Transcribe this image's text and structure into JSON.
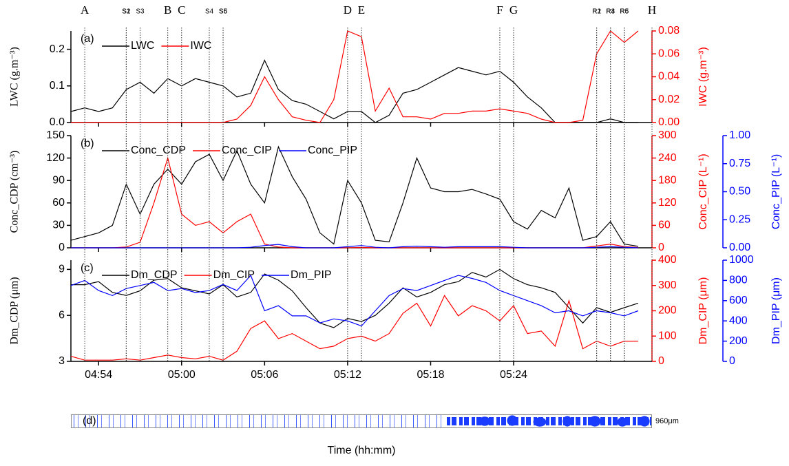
{
  "chart_data": {
    "type": "line",
    "xlabel": "Time (hh:mm)",
    "x": [
      "04:52",
      "04:53",
      "04:54",
      "04:55",
      "04:56",
      "04:57",
      "04:58",
      "04:59",
      "05:00",
      "05:01",
      "05:02",
      "05:03",
      "05:04",
      "05:05",
      "05:06",
      "05:07",
      "05:08",
      "05:09",
      "05:10",
      "05:11",
      "05:12",
      "05:13",
      "05:14",
      "05:15",
      "05:16",
      "05:17",
      "05:18",
      "05:19",
      "05:20",
      "05:21",
      "05:22",
      "05:23",
      "05:24",
      "05:25",
      "05:26",
      "05:27",
      "05:28",
      "05:29",
      "05:30",
      "05:31",
      "05:32",
      "05:33"
    ],
    "xlim": [
      "04:52",
      "05:34"
    ],
    "xticks": [
      "04:54",
      "05:00",
      "05:06",
      "05:12",
      "05:18",
      "05:24"
    ],
    "markers": [
      {
        "label": "A",
        "x": "04:53"
      },
      {
        "label": "S1",
        "x": "04:56"
      },
      {
        "label": "S2",
        "x": "04:56"
      },
      {
        "label": "S3",
        "x": "04:57"
      },
      {
        "label": "B",
        "x": "04:59"
      },
      {
        "label": "C",
        "x": "05:00"
      },
      {
        "label": "S4",
        "x": "05:02"
      },
      {
        "label": "S5",
        "x": "05:03"
      },
      {
        "label": "S6",
        "x": "05:03"
      },
      {
        "label": "D",
        "x": "05:12"
      },
      {
        "label": "E",
        "x": "05:13"
      },
      {
        "label": "F",
        "x": "05:23"
      },
      {
        "label": "G",
        "x": "05:24"
      },
      {
        "label": "R1",
        "x": "05:30"
      },
      {
        "label": "R2",
        "x": "05:30"
      },
      {
        "label": "R3",
        "x": "05:31"
      },
      {
        "label": "R4",
        "x": "05:31"
      },
      {
        "label": "R5",
        "x": "05:32"
      },
      {
        "label": "R6",
        "x": "05:32"
      },
      {
        "label": "H",
        "x": "05:34"
      }
    ],
    "legend": "upper left",
    "panels": [
      {
        "label": "(a)",
        "ylabel": "LWC (g.m⁻³)",
        "ylim": [
          0,
          0.25
        ],
        "yticks": [
          {
            "value": 0,
            "label": "0.0"
          },
          {
            "value": 0.1,
            "label": "0.1"
          },
          {
            "value": 0.2,
            "label": "0.2"
          }
        ],
        "y2label": "IWC (g.m⁻³)",
        "y2lim": [
          0,
          0.08
        ],
        "y2ticks": [
          {
            "value": 0,
            "label": "0.00"
          },
          {
            "value": 0.02,
            "label": "0.02"
          },
          {
            "value": 0.04,
            "label": "0.04"
          },
          {
            "value": 0.06,
            "label": "0.06"
          },
          {
            "value": 0.08,
            "label": "0.08"
          }
        ],
        "series": [
          {
            "name": "LWC",
            "color": "#000000",
            "axis": "y",
            "values": [
              0.03,
              0.04,
              0.03,
              0.04,
              0.09,
              0.11,
              0.08,
              0.12,
              0.1,
              0.12,
              0.11,
              0.1,
              0.07,
              0.08,
              0.17,
              0.09,
              0.06,
              0.05,
              0.03,
              0.01,
              0.03,
              0.03,
              0,
              0.02,
              0.08,
              0.09,
              0.11,
              0.13,
              0.15,
              0.14,
              0.13,
              0.14,
              0.11,
              0.07,
              0.04,
              0,
              0,
              0,
              0,
              0.01,
              0,
              0
            ]
          },
          {
            "name": "IWC",
            "color": "#ff0000",
            "axis": "y2",
            "values": [
              0,
              0,
              0,
              0,
              0,
              0,
              0,
              0,
              0,
              0,
              0,
              0,
              0.003,
              0.015,
              0.04,
              0.02,
              0.005,
              0.002,
              0,
              0.02,
              0.08,
              0.075,
              0.01,
              0.03,
              0.005,
              0.005,
              0.003,
              0.008,
              0.008,
              0.01,
              0.01,
              0.012,
              0.01,
              0.008,
              0.003,
              0,
              0,
              0.002,
              0.06,
              0.08,
              0.07,
              0.08
            ]
          }
        ]
      },
      {
        "label": "(b)",
        "ylabel": "Conc_CDP (cm⁻³)",
        "ylim": [
          0,
          150
        ],
        "yticks": [
          0,
          30,
          60,
          90,
          120,
          150
        ],
        "y2label": "Conc_CIP (L⁻¹)",
        "y2lim": [
          0,
          300
        ],
        "y2ticks": [
          0,
          60,
          120,
          180,
          240,
          300
        ],
        "y3label": "Conc_PIP (L⁻¹)",
        "y3lim": [
          0,
          1
        ],
        "y3ticks": [
          {
            "value": 0,
            "label": "0.00"
          },
          {
            "value": 0.25,
            "label": "0.25"
          },
          {
            "value": 0.5,
            "label": "0.50"
          },
          {
            "value": 0.75,
            "label": "0.75"
          },
          {
            "value": 1,
            "label": "1.00"
          }
        ],
        "series": [
          {
            "name": "Conc_CDP",
            "color": "#000000",
            "axis": "y",
            "values": [
              10,
              15,
              20,
              30,
              85,
              45,
              85,
              105,
              85,
              115,
              125,
              90,
              130,
              85,
              60,
              135,
              95,
              65,
              20,
              5,
              90,
              60,
              10,
              8,
              60,
              120,
              80,
              75,
              75,
              78,
              72,
              65,
              35,
              25,
              50,
              40,
              80,
              10,
              15,
              35,
              5,
              2
            ]
          },
          {
            "name": "Conc_CIP",
            "color": "#ff0000",
            "axis": "y2",
            "values": [
              0,
              0,
              0,
              0,
              2,
              15,
              120,
              240,
              90,
              60,
              70,
              40,
              70,
              90,
              10,
              2,
              0,
              0,
              0,
              0,
              0,
              1,
              0,
              0,
              0,
              0,
              0,
              0,
              0,
              0,
              0,
              0,
              0,
              0,
              0,
              0,
              0,
              0,
              5,
              10,
              3,
              1
            ]
          },
          {
            "name": "Conc_PIP",
            "color": "#0000ff",
            "axis": "y3",
            "values": [
              0,
              0,
              0,
              0,
              0,
              0,
              0,
              0,
              0,
              0,
              0,
              0,
              0,
              0.005,
              0.02,
              0.03,
              0.01,
              0,
              0,
              0,
              0.01,
              0.02,
              0.005,
              0,
              0.01,
              0.015,
              0.01,
              0.005,
              0.01,
              0.01,
              0.01,
              0.01,
              0.005,
              0,
              0,
              0,
              0,
              0,
              0.005,
              0.01,
              0.005,
              0
            ]
          }
        ]
      },
      {
        "label": "(c)",
        "ylabel": "Dm_CDP (μm)",
        "ylim": [
          3,
          9.6
        ],
        "yticks": [
          3,
          6,
          9
        ],
        "y2label": "Dm_CIP (μm)",
        "y2lim": [
          0,
          400
        ],
        "y2ticks": [
          0,
          100,
          200,
          300,
          400
        ],
        "y3label": "Dm_PIP (μm)",
        "y3lim": [
          0,
          1000
        ],
        "y3ticks": [
          0,
          200,
          400,
          600,
          800,
          1000
        ],
        "series": [
          {
            "name": "Dm_CDP",
            "color": "#000000",
            "axis": "y",
            "values": [
              8,
              8,
              8.2,
              7.5,
              7.3,
              7.6,
              8.3,
              8.4,
              7.8,
              7.6,
              7.4,
              8,
              7.2,
              7.5,
              8.7,
              8.3,
              7.6,
              6.5,
              5.5,
              5.2,
              5.8,
              5.6,
              6,
              6.8,
              7.8,
              7.2,
              7.5,
              8,
              8.2,
              8.8,
              8.5,
              9,
              8.4,
              8,
              7.8,
              7.5,
              6.5,
              5.5,
              6.5,
              6.2,
              6.5,
              6.8
            ]
          },
          {
            "name": "Dm_CIP",
            "color": "#ff0000",
            "axis": "y2",
            "values": [
              20,
              5,
              5,
              5,
              10,
              5,
              15,
              25,
              15,
              10,
              20,
              5,
              40,
              130,
              160,
              90,
              110,
              80,
              50,
              60,
              90,
              100,
              80,
              110,
              190,
              230,
              140,
              260,
              180,
              220,
              200,
              160,
              220,
              110,
              120,
              60,
              240,
              50,
              80,
              60,
              80,
              80
            ]
          },
          {
            "name": "Dm_PIP",
            "color": "#0000ff",
            "axis": "y3",
            "values": [
              750,
              800,
              700,
              650,
              720,
              750,
              780,
              700,
              720,
              680,
              700,
              760,
              700,
              850,
              500,
              550,
              450,
              450,
              380,
              420,
              400,
              350,
              500,
              650,
              720,
              700,
              750,
              800,
              850,
              820,
              780,
              700,
              650,
              600,
              550,
              480,
              500,
              450,
              500,
              480,
              450,
              500
            ]
          }
        ]
      }
    ],
    "strip": {
      "label": "(d)",
      "scale": "960μm"
    }
  }
}
